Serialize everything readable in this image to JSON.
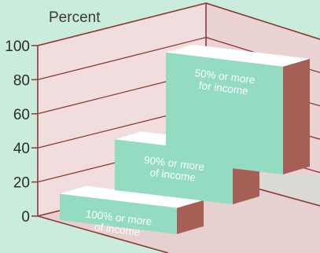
{
  "chart_data": {
    "type": "bar",
    "ylabel": "Percent",
    "ylim": [
      0,
      100
    ],
    "yticks": [
      "0",
      "20",
      "40",
      "60",
      "80",
      "100"
    ],
    "categories": [
      "100% or more of income",
      "90% or more of income",
      "50% or more for income"
    ],
    "bar_labels": [
      [
        "100% or more",
        "of income"
      ],
      [
        "90% or more",
        "of income"
      ],
      [
        "50% or more",
        "for income"
      ]
    ],
    "values": [
      17,
      33,
      70
    ],
    "colors": {
      "background": "#c9ecdd",
      "wall": "#f1dddd",
      "bar_front": "#93dcc1",
      "bar_top": "#ffffff",
      "bar_side": "#a65f55",
      "wall_line": "#8b3a34"
    }
  }
}
